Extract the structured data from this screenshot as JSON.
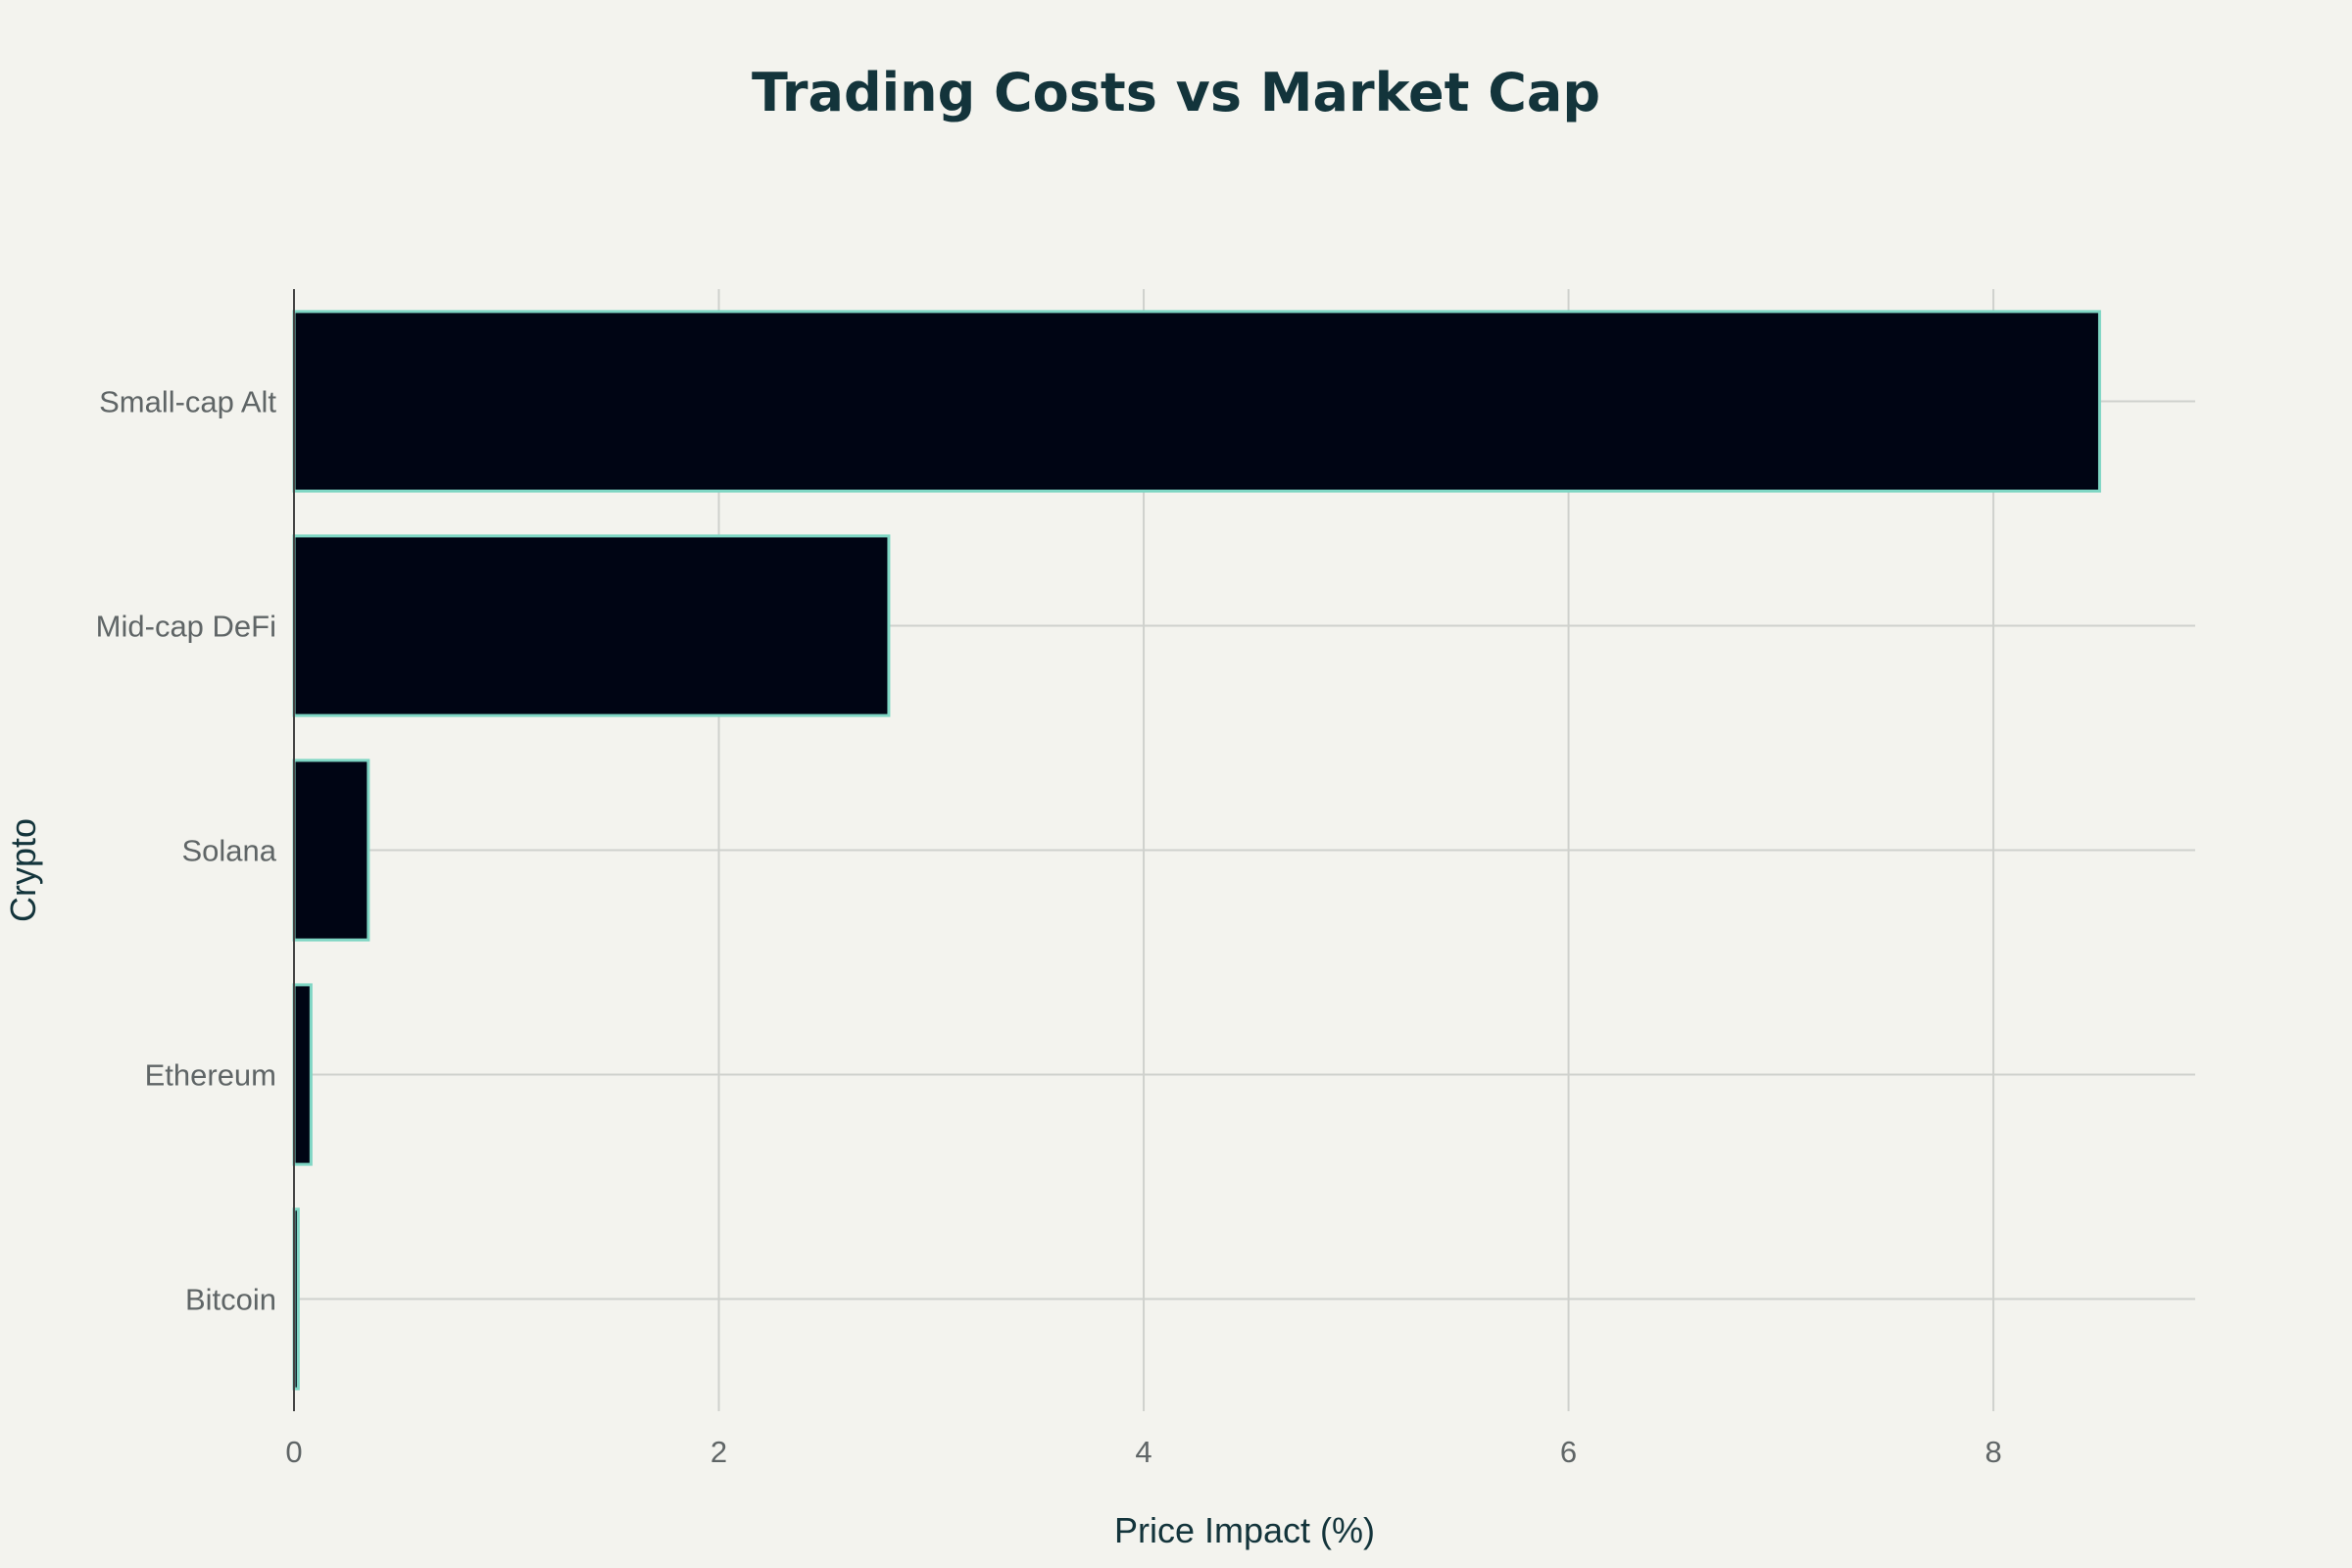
{
  "chart_data": {
    "type": "bar",
    "orientation": "horizontal",
    "title": "Trading Costs vs Market Cap",
    "xlabel": "Price Impact (%)",
    "ylabel": "Crypto",
    "categories": [
      "Bitcoin",
      "Ethereum",
      "Solana",
      "Mid-cap DeFi",
      "Small-cap Alt"
    ],
    "values": [
      0.02,
      0.08,
      0.35,
      2.8,
      8.5
    ],
    "xlim": [
      0,
      8.95
    ],
    "xticks": [
      "0",
      "2",
      "4",
      "6",
      "8"
    ],
    "xtick_values": [
      0,
      2,
      4,
      6,
      8
    ],
    "grid": true,
    "bar_fill": "#000514",
    "bar_outline": "#7fd6c4"
  }
}
